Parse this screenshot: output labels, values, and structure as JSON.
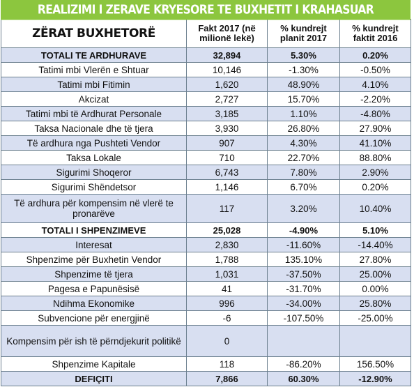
{
  "title": "REALIZIMI I ZERAVE KRYESORE TE BUXHETIT I KRAHASUAR",
  "headers": [
    "ZËRAT BUXHETORË",
    "Fakt 2017 (në milionë lekë)",
    "% kundrejt planit 2017",
    "% kundrejt faktit 2016"
  ],
  "rows": [
    {
      "label": "TOTALI TE ARDHURAVE",
      "fakt": "32,894",
      "plan": "5.30%",
      "prev": "0.20%",
      "total": true
    },
    {
      "label": "Tatimi mbi Vlerën e Shtuar",
      "fakt": "10,146",
      "plan": "-1.30%",
      "prev": "-0.50%"
    },
    {
      "label": "Tatimi mbi Fitimin",
      "fakt": "1,620",
      "plan": "48.90%",
      "prev": "4.10%"
    },
    {
      "label": "Akcizat",
      "fakt": "2,727",
      "plan": "15.70%",
      "prev": "-2.20%"
    },
    {
      "label": "Tatimi mbi të Ardhurat Personale",
      "fakt": "3,185",
      "plan": "1.10%",
      "prev": "-4.80%"
    },
    {
      "label": "Taksa Nacionale dhe të tjera",
      "fakt": "3,930",
      "plan": "26.80%",
      "prev": "27.90%"
    },
    {
      "label": "Të ardhura nga Pushteti Vendor",
      "fakt": "907",
      "plan": "4.30%",
      "prev": "41.10%"
    },
    {
      "label": "Taksa Lokale",
      "fakt": "710",
      "plan": "22.70%",
      "prev": "88.80%"
    },
    {
      "label": "Sigurimi Shoqeror",
      "fakt": "6,743",
      "plan": "7.80%",
      "prev": "2.90%"
    },
    {
      "label": "Sigurimi Shëndetsor",
      "fakt": "1,146",
      "plan": "6.70%",
      "prev": "0.20%"
    },
    {
      "label": "Të ardhura për kompensim në vlerë te pronarëve",
      "fakt": "117",
      "plan": "3.20%",
      "prev": "10.40%",
      "tall": true
    },
    {
      "label": "TOTALI I SHPENZIMEVE",
      "fakt": "25,028",
      "plan": "-4.90%",
      "prev": "5.10%",
      "total": true
    },
    {
      "label": "Interesat",
      "fakt": "2,830",
      "plan": "-11.60%",
      "prev": "-14.40%"
    },
    {
      "label": "Shpenzime për Buxhetin Vendor",
      "fakt": "1,788",
      "plan": "135.10%",
      "prev": "27.80%"
    },
    {
      "label": "Shpenzime të tjera",
      "fakt": "1,031",
      "plan": "-37.50%",
      "prev": "25.00%"
    },
    {
      "label": "Pagesa e Papunësisë",
      "fakt": "41",
      "plan": "-31.70%",
      "prev": "0.00%"
    },
    {
      "label": "Ndihma Ekonomike",
      "fakt": "996",
      "plan": "-34.00%",
      "prev": "25.80%"
    },
    {
      "label": "Subvencione për energjinë",
      "fakt": "-6",
      "plan": "-107.50%",
      "prev": "-25.00%"
    },
    {
      "label": "Kompensim për ish të përndjekurit politikë",
      "fakt": "0",
      "plan": "",
      "prev": "",
      "tall2": true
    },
    {
      "label": "Shpenzime Kapitale",
      "fakt": "118",
      "plan": "-86.20%",
      "prev": "156.50%"
    },
    {
      "label": "DEFIÇITI",
      "fakt": "7,866",
      "plan": "60.30%",
      "prev": "-12.90%",
      "total": true
    }
  ]
}
